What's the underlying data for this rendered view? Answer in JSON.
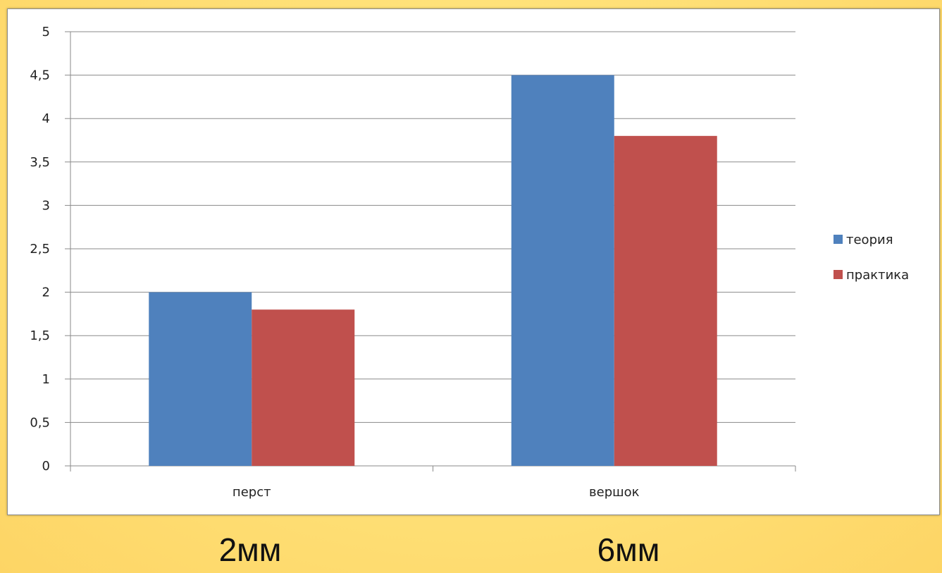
{
  "chart_data": {
    "type": "bar",
    "categories": [
      "перст",
      "вершок"
    ],
    "series": [
      {
        "name": "теория",
        "values": [
          2,
          4.5
        ],
        "color": "#4f81bd"
      },
      {
        "name": "практика",
        "values": [
          1.8,
          3.8
        ],
        "color": "#c0504d"
      }
    ],
    "ylim": [
      0,
      5
    ],
    "yticks": [
      "0",
      "0,5",
      "1",
      "1,5",
      "2",
      "2,5",
      "3",
      "3,5",
      "4",
      "4,5",
      "5"
    ],
    "title": "",
    "xlabel": "",
    "ylabel": "",
    "grid": true,
    "legend_position": "right"
  },
  "captions": {
    "left": "2мм",
    "right": "6мм"
  }
}
